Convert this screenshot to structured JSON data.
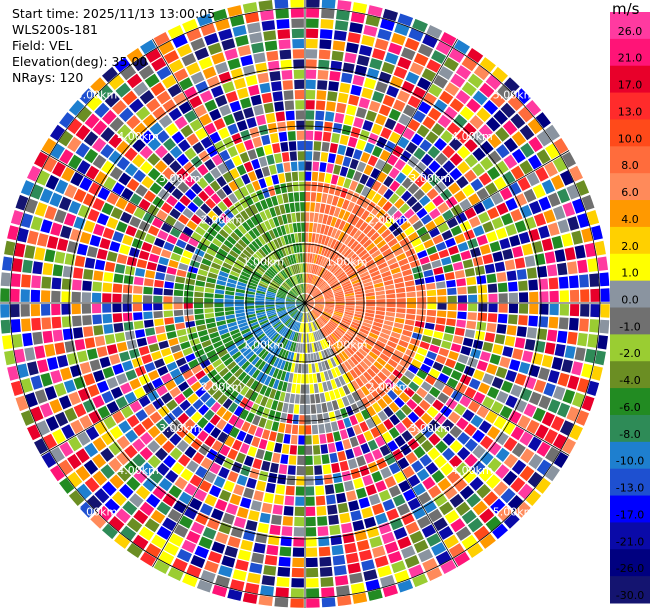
{
  "info": {
    "start_time": "Start time: 2025/11/13 13:00:05",
    "instrument": "WLS200s-181",
    "field": "Field: VEL",
    "elevation": "Elevation(deg): 35.00",
    "nrays": "NRays: 120"
  },
  "colorbar": {
    "unit": "m/s",
    "ticks": [
      "26.0",
      "21.0",
      "17.0",
      "13.0",
      "10.0",
      "8.0",
      "6.0",
      "4.0",
      "2.0",
      "1.0",
      "0.0",
      "-1.0",
      "-2.0",
      "-4.0",
      "-6.0",
      "-8.0",
      "-10.0",
      "-13.0",
      "-17.0",
      "-21.0",
      "-26.0",
      "-30.0"
    ],
    "colors": [
      "#ff3aa0",
      "#ff1477",
      "#e8002a",
      "#ff2b2b",
      "#ff4a1a",
      "#ff6c3c",
      "#ff8a5a",
      "#ff9900",
      "#ffd000",
      "#ffff00",
      "#8a94a0",
      "#707070",
      "#9acd32",
      "#6b8e23",
      "#228b22",
      "#2e8b57",
      "#1e7fcf",
      "#1e50d0",
      "#0000ff",
      "#0a0aa8",
      "#000080",
      "#141470"
    ]
  },
  "chart_data": {
    "type": "heatmap",
    "title": "",
    "ring_labels": [
      "1.00km",
      "2.00km",
      "3.00km",
      "4.00km",
      "5.00km"
    ],
    "rays": 120,
    "range_km": [
      0,
      5.7
    ],
    "field": "VEL",
    "units": "m/s"
  }
}
